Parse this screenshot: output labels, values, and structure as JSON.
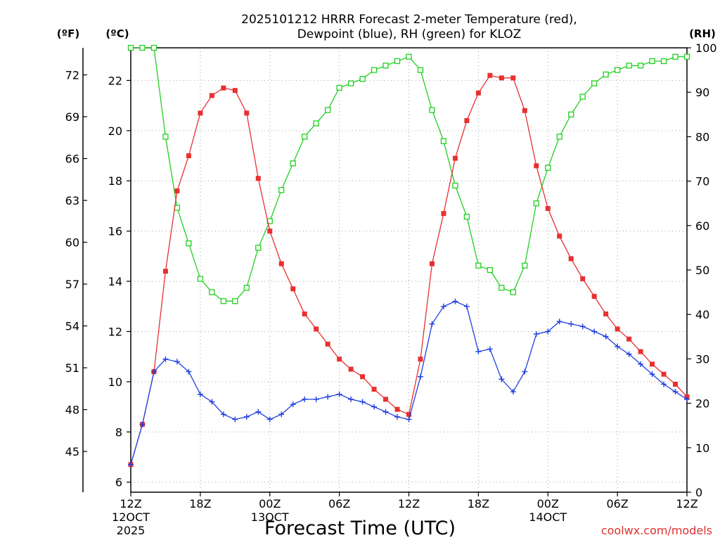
{
  "chart_data": {
    "type": "line",
    "title_line1": "2025101212 HRRR Forecast 2-meter Temperature (red),",
    "title_line2": "Dewpoint (blue), RH (green) for KLOZ",
    "xlabel": "Forecast Time (UTC)",
    "credit": "coolwx.com/models",
    "left_outer_unit": "(ºF)",
    "left_inner_unit": "(ºC)",
    "right_unit": "(RH)",
    "grid": true,
    "x_range_hours": [
      0,
      48
    ],
    "celsius_axis": {
      "range": [
        5.6,
        23.3
      ],
      "ticks": [
        "6",
        "8",
        "10",
        "12",
        "14",
        "16",
        "18",
        "20",
        "22"
      ],
      "values": [
        6,
        8,
        10,
        12,
        14,
        16,
        18,
        20,
        22
      ]
    },
    "fahrenheit_axis": {
      "ticks": [
        "45",
        "48",
        "51",
        "54",
        "57",
        "60",
        "63",
        "66",
        "69",
        "72"
      ],
      "values": [
        45,
        48,
        51,
        54,
        57,
        60,
        63,
        66,
        69,
        72
      ]
    },
    "rh_axis": {
      "range": [
        0,
        100
      ],
      "ticks": [
        "0",
        "10",
        "20",
        "30",
        "40",
        "50",
        "60",
        "70",
        "80",
        "90",
        "100"
      ],
      "values": [
        0,
        10,
        20,
        30,
        40,
        50,
        60,
        70,
        80,
        90,
        100
      ]
    },
    "x_ticks": [
      {
        "hour": 0,
        "label": "12Z",
        "line2": "12OCT",
        "line3": "2025"
      },
      {
        "hour": 6,
        "label": "18Z",
        "line2": "",
        "line3": ""
      },
      {
        "hour": 12,
        "label": "00Z",
        "line2": "13OCT",
        "line3": ""
      },
      {
        "hour": 18,
        "label": "06Z",
        "line2": "",
        "line3": ""
      },
      {
        "hour": 24,
        "label": "12Z",
        "line2": "",
        "line3": ""
      },
      {
        "hour": 30,
        "label": "18Z",
        "line2": "",
        "line3": ""
      },
      {
        "hour": 36,
        "label": "00Z",
        "line2": "14OCT",
        "line3": ""
      },
      {
        "hour": 42,
        "label": "06Z",
        "line2": "",
        "line3": ""
      },
      {
        "hour": 48,
        "label": "12Z",
        "line2": "",
        "line3": ""
      }
    ],
    "colors": {
      "temperature": "#e83030",
      "dewpoint": "#2040e0",
      "rh": "#20d020",
      "grid": "#a0a0a0"
    },
    "series": [
      {
        "key": "temperature",
        "axis": "celsius",
        "marker": "filled-square",
        "values": [
          6.7,
          8.3,
          10.4,
          14.4,
          17.6,
          19.0,
          20.7,
          21.4,
          21.7,
          21.6,
          20.7,
          18.1,
          16.0,
          14.7,
          13.7,
          12.7,
          12.1,
          11.5,
          10.9,
          10.5,
          10.2,
          9.7,
          9.3,
          8.9,
          8.7,
          10.9,
          14.7,
          16.7,
          18.9,
          20.4,
          21.5,
          22.2,
          22.1,
          22.1,
          20.8,
          18.6,
          16.9,
          15.8,
          14.9,
          14.1,
          13.4,
          12.7,
          12.1,
          11.7,
          11.2,
          10.7,
          10.3,
          9.9,
          9.4
        ]
      },
      {
        "key": "dewpoint",
        "axis": "celsius",
        "marker": "plus",
        "values": [
          6.7,
          8.3,
          10.4,
          10.9,
          10.8,
          10.4,
          9.5,
          9.2,
          8.7,
          8.5,
          8.6,
          8.8,
          8.5,
          8.7,
          9.1,
          9.3,
          9.3,
          9.4,
          9.5,
          9.3,
          9.2,
          9.0,
          8.8,
          8.6,
          8.5,
          10.2,
          12.3,
          13.0,
          13.2,
          13.0,
          11.2,
          11.3,
          10.1,
          9.6,
          10.4,
          11.9,
          12.0,
          12.4,
          12.3,
          12.2,
          12.0,
          11.8,
          11.4,
          11.1,
          10.7,
          10.3,
          9.9,
          9.6,
          9.3
        ]
      },
      {
        "key": "rh",
        "axis": "rh",
        "marker": "open-square",
        "values": [
          100,
          100,
          100,
          80,
          64,
          56,
          48,
          45,
          43,
          43,
          46,
          55,
          61,
          68,
          74,
          80,
          83,
          86,
          91,
          92,
          93,
          95,
          96,
          97,
          98,
          95,
          86,
          79,
          69,
          62,
          51,
          50,
          46,
          45,
          51,
          65,
          73,
          80,
          85,
          89,
          92,
          94,
          95,
          96,
          96,
          97,
          97,
          98,
          98
        ]
      }
    ]
  }
}
